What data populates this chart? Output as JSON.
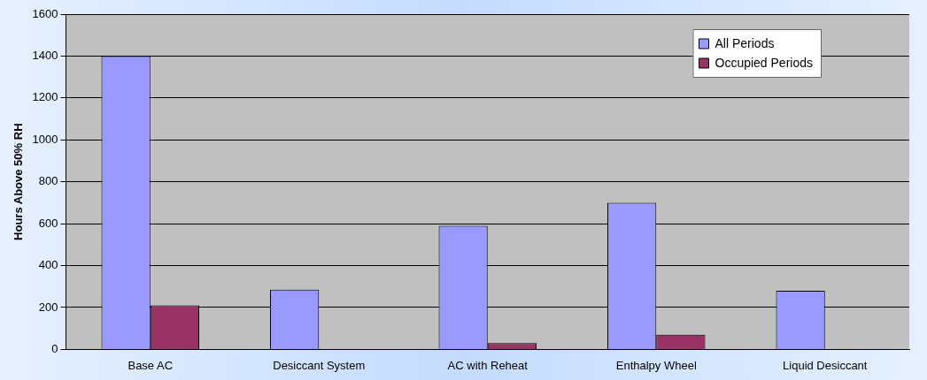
{
  "chart_data": {
    "type": "bar",
    "ylabel": "Hours Above 50% RH",
    "categories": [
      "Base AC",
      "Desiccant System",
      "AC with Reheat",
      "Enthalpy Wheel",
      "Liquid Desiccant"
    ],
    "series": [
      {
        "name": "All Periods",
        "color": "#9999ff",
        "values": [
          1400,
          285,
          590,
          700,
          280
        ]
      },
      {
        "name": "Occupied Periods",
        "color": "#993366",
        "values": [
          210,
          0,
          30,
          70,
          0
        ]
      }
    ],
    "ylim": [
      0,
      1600
    ],
    "yticks": [
      0,
      200,
      400,
      600,
      800,
      1000,
      1200,
      1400,
      1600
    ],
    "grid": "y",
    "legend": "top right"
  }
}
